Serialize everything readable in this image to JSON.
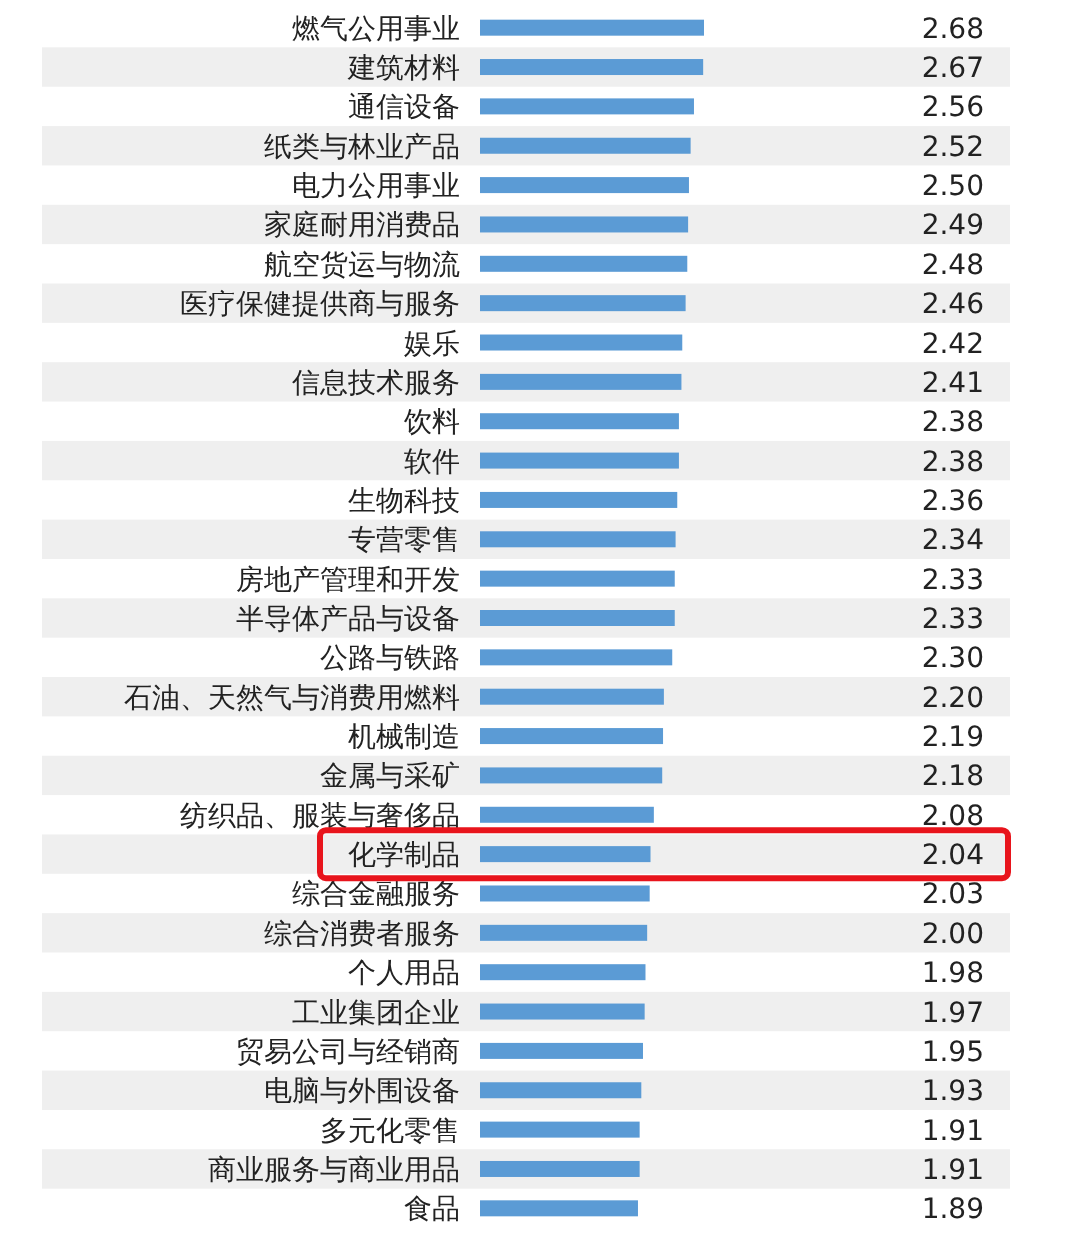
{
  "chart_data": {
    "type": "bar",
    "orientation": "horizontal",
    "color": "#5b9bd5",
    "categories": [
      "燃气公用事业",
      "建筑材料",
      "通信设备",
      "纸类与林业产品",
      "电力公用事业",
      "家庭耐用消费品",
      "航空货运与物流",
      "医疗保健提供商与服务",
      "娱乐",
      "信息技术服务",
      "饮料",
      "软件",
      "生物科技",
      "专营零售",
      "房地产管理和开发",
      "半导体产品与设备",
      "公路与铁路",
      "石油、天然气与消费用燃料",
      "机械制造",
      "金属与采矿",
      "纺织品、服装与奢侈品",
      "化学制品",
      "综合金融服务",
      "综合消费者服务",
      "个人用品",
      "工业集团企业",
      "贸易公司与经销商",
      "电脑与外围设备",
      "多元化零售",
      "商业服务与商业用品",
      "食品"
    ],
    "values": [
      2.68,
      2.67,
      2.56,
      2.52,
      2.5,
      2.49,
      2.48,
      2.46,
      2.42,
      2.41,
      2.38,
      2.38,
      2.36,
      2.34,
      2.33,
      2.33,
      2.3,
      2.2,
      2.19,
      2.18,
      2.08,
      2.04,
      2.03,
      2.0,
      1.98,
      1.97,
      1.95,
      1.93,
      1.91,
      1.91,
      1.89
    ],
    "value_labels": [
      "2.68",
      "2.67",
      "2.56",
      "2.52",
      "2.50",
      "2.49",
      "2.48",
      "2.46",
      "2.42",
      "2.41",
      "2.38",
      "2.38",
      "2.36",
      "2.34",
      "2.33",
      "2.33",
      "2.30",
      "2.20",
      "2.19",
      "2.18",
      "2.08",
      "2.04",
      "2.03",
      "2.00",
      "1.98",
      "1.97",
      "1.95",
      "1.93",
      "1.91",
      "1.91",
      "1.89"
    ]
  }
}
